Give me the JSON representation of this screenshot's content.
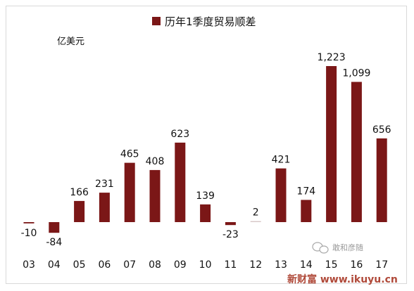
{
  "chart_data": {
    "type": "bar",
    "legend": "历年1季度贸易顺差",
    "unit_label": "亿美元",
    "categories": [
      "03",
      "04",
      "05",
      "06",
      "07",
      "08",
      "09",
      "10",
      "11",
      "12",
      "13",
      "14",
      "15",
      "16",
      "17"
    ],
    "values": [
      -10,
      -84,
      166,
      231,
      465,
      408,
      623,
      139,
      -23,
      2,
      421,
      174,
      1223,
      1099,
      656
    ],
    "data_labels": [
      "-10",
      "-84",
      "166",
      "231",
      "465",
      "408",
      "623",
      "139",
      "-23",
      "2",
      "421",
      "174",
      "1,223",
      "1,099",
      "656"
    ],
    "ylim": [
      -150,
      1300
    ],
    "bar_color": "#7b1717",
    "grid": false,
    "legend_position": "top-center"
  },
  "watermark": "敢和彦随",
  "footer": "新财富 www.ikuyu.cn"
}
